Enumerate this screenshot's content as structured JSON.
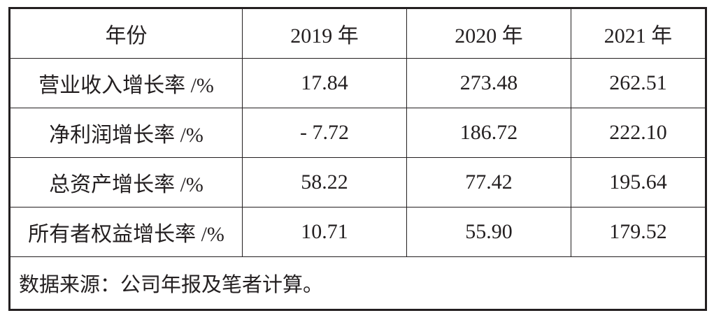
{
  "table": {
    "header": [
      "年份",
      "2019 年",
      "2020 年",
      "2021 年"
    ],
    "rows": [
      [
        "营业收入增长率 /%",
        "17.84",
        "273.48",
        "262.51"
      ],
      [
        "净利润增长率 /%",
        "- 7.72",
        "186.72",
        "222.10"
      ],
      [
        "总资产增长率 /%",
        "58.22",
        "77.42",
        "195.64"
      ],
      [
        "所有者权益增长率 /%",
        "10.71",
        "55.90",
        "179.52"
      ]
    ],
    "note": "数据来源：公司年报及笔者计算。"
  }
}
